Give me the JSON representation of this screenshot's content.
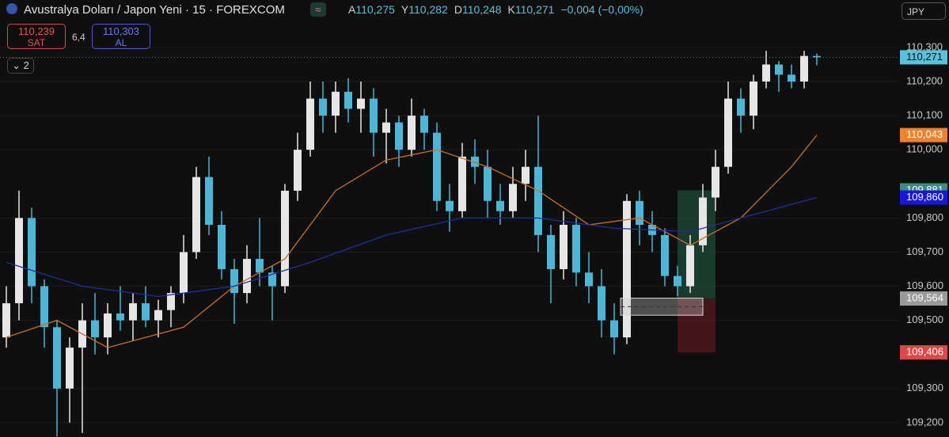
{
  "header": {
    "symbol": "Avustralya Doları / Japon Yeni · 15 · FOREXCOM",
    "approx": "≈",
    "ohlc_labels": [
      {
        "key": "A",
        "value": "110,275"
      },
      {
        "key": "Y",
        "value": "110,282"
      },
      {
        "key": "D",
        "value": "110,248"
      },
      {
        "key": "K",
        "value": "110,271"
      }
    ],
    "change": "−0,004 (−0,00%)",
    "sell_price": "110,239",
    "sell": "SAT",
    "spread": "6,4",
    "buy_price": "110,303",
    "buy": "AL",
    "indicators": "2",
    "currency": "JPY"
  },
  "chart_data": {
    "type": "candlestick",
    "up_color": "#e6e6e6",
    "down_color": "#4db6d6",
    "grid": true,
    "ylim": [
      109.158,
      110.439
    ],
    "yticks": [
      {
        "value": 110.3,
        "label": "110,300"
      },
      {
        "value": 110.2,
        "label": "110,200"
      },
      {
        "value": 110.1,
        "label": "110,100"
      },
      {
        "value": 110.0,
        "label": "110,000"
      },
      {
        "value": 109.8,
        "label": "109,800"
      },
      {
        "value": 109.7,
        "label": "109,700"
      },
      {
        "value": 109.6,
        "label": "109,600"
      },
      {
        "value": 109.5,
        "label": "109,500"
      },
      {
        "value": 109.3,
        "label": "109,300"
      },
      {
        "value": 109.2,
        "label": "109,200"
      }
    ],
    "ohlc": [
      [
        109.45,
        109.6,
        109.42,
        109.55
      ],
      [
        109.55,
        109.88,
        109.5,
        109.8
      ],
      [
        109.8,
        109.83,
        109.55,
        109.6
      ],
      [
        109.6,
        109.62,
        109.42,
        109.48
      ],
      [
        109.48,
        109.5,
        109.16,
        109.3
      ],
      [
        109.3,
        109.45,
        109.2,
        109.42
      ],
      [
        109.42,
        109.55,
        109.17,
        109.5
      ],
      [
        109.5,
        109.58,
        109.4,
        109.45
      ],
      [
        109.45,
        109.55,
        109.4,
        109.52
      ],
      [
        109.52,
        109.6,
        109.47,
        109.5
      ],
      [
        109.5,
        109.58,
        109.44,
        109.55
      ],
      [
        109.55,
        109.6,
        109.48,
        109.5
      ],
      [
        109.5,
        109.56,
        109.45,
        109.53
      ],
      [
        109.53,
        109.6,
        109.48,
        109.58
      ],
      [
        109.58,
        109.75,
        109.55,
        109.7
      ],
      [
        109.7,
        109.95,
        109.68,
        109.92
      ],
      [
        109.92,
        109.98,
        109.75,
        109.78
      ],
      [
        109.78,
        109.82,
        109.62,
        109.65
      ],
      [
        109.65,
        109.68,
        109.49,
        109.58
      ],
      [
        109.58,
        109.72,
        109.55,
        109.68
      ],
      [
        109.68,
        109.8,
        109.6,
        109.64
      ],
      [
        109.64,
        109.66,
        109.5,
        109.6
      ],
      [
        109.6,
        109.9,
        109.58,
        109.88
      ],
      [
        109.88,
        110.05,
        109.85,
        110.0
      ],
      [
        110.0,
        110.2,
        109.98,
        110.15
      ],
      [
        110.15,
        110.2,
        110.05,
        110.1
      ],
      [
        110.1,
        110.2,
        110.05,
        110.17
      ],
      [
        110.17,
        110.21,
        110.08,
        110.12
      ],
      [
        110.12,
        110.2,
        110.05,
        110.15
      ],
      [
        110.15,
        110.18,
        109.98,
        110.05
      ],
      [
        110.05,
        110.12,
        109.96,
        110.08
      ],
      [
        110.08,
        110.1,
        109.95,
        110.0
      ],
      [
        110.0,
        110.15,
        109.98,
        110.1
      ],
      [
        110.1,
        110.12,
        110.0,
        110.05
      ],
      [
        110.05,
        110.08,
        109.82,
        109.85
      ],
      [
        109.85,
        109.9,
        109.76,
        109.82
      ],
      [
        109.82,
        110.02,
        109.8,
        109.98
      ],
      [
        109.98,
        110.03,
        109.9,
        109.95
      ],
      [
        109.95,
        110.0,
        109.8,
        109.85
      ],
      [
        109.85,
        109.9,
        109.78,
        109.82
      ],
      [
        109.82,
        109.95,
        109.8,
        109.9
      ],
      [
        109.9,
        110.0,
        109.85,
        109.95
      ],
      [
        109.95,
        110.1,
        109.7,
        109.75
      ],
      [
        109.75,
        109.78,
        109.55,
        109.65
      ],
      [
        109.65,
        109.82,
        109.62,
        109.78
      ],
      [
        109.78,
        109.8,
        109.6,
        109.64
      ],
      [
        109.64,
        109.7,
        109.55,
        109.6
      ],
      [
        109.6,
        109.65,
        109.45,
        109.5
      ],
      [
        109.5,
        109.55,
        109.4,
        109.45
      ],
      [
        109.45,
        109.87,
        109.43,
        109.85
      ],
      [
        109.85,
        109.88,
        109.72,
        109.78
      ],
      [
        109.78,
        109.82,
        109.7,
        109.75
      ],
      [
        109.75,
        109.77,
        109.6,
        109.63
      ],
      [
        109.63,
        109.66,
        109.57,
        109.6
      ],
      [
        109.6,
        109.75,
        109.58,
        109.72
      ],
      [
        109.72,
        109.9,
        109.7,
        109.86
      ],
      [
        109.86,
        110.0,
        109.82,
        109.95
      ],
      [
        109.95,
        110.2,
        109.93,
        110.15
      ],
      [
        110.15,
        110.18,
        110.05,
        110.1
      ],
      [
        110.1,
        110.22,
        110.06,
        110.2
      ],
      [
        110.2,
        110.29,
        110.18,
        110.25
      ],
      [
        110.25,
        110.26,
        110.17,
        110.22
      ],
      [
        110.22,
        110.25,
        110.18,
        110.2
      ],
      [
        110.2,
        110.29,
        110.18,
        110.275
      ],
      [
        110.275,
        110.282,
        110.248,
        110.271
      ]
    ],
    "series": [
      {
        "color": "#c8702a",
        "x": [
          0,
          4,
          8,
          14,
          18,
          22,
          26,
          30,
          34,
          38,
          42,
          46,
          50,
          54,
          58,
          62,
          64
        ],
        "values": [
          109.45,
          109.5,
          109.42,
          109.48,
          109.6,
          109.68,
          109.88,
          109.97,
          110.0,
          109.95,
          109.88,
          109.78,
          109.8,
          109.72,
          109.8,
          109.95,
          110.043
        ]
      },
      {
        "color": "#1f2f9a",
        "x": [
          0,
          6,
          12,
          18,
          24,
          30,
          36,
          42,
          48,
          54,
          60,
          64
        ],
        "values": [
          109.67,
          109.6,
          109.57,
          109.6,
          109.67,
          109.75,
          109.8,
          109.8,
          109.77,
          109.76,
          109.82,
          109.86
        ]
      }
    ],
    "position": {
      "x": [
        53,
        56
      ],
      "entry": 109.564,
      "target": 109.881,
      "stop": 109.406
    },
    "zone": {
      "x": [
        48.5,
        55
      ],
      "low": 109.515,
      "high": 109.565
    },
    "price_labels": [
      {
        "value": 110.271,
        "label": "110,271",
        "color": "#5bc0de"
      },
      {
        "value": 110.043,
        "label": "110,043",
        "color": "#f0822e"
      },
      {
        "value": 109.881,
        "label": "109,881",
        "color": "#3b8f7a"
      },
      {
        "value": 109.86,
        "label": "109,860",
        "color": "#1818d8"
      },
      {
        "value": 109.564,
        "label": "109,564",
        "color": "#9a9a9a"
      },
      {
        "value": 109.406,
        "label": "109,406",
        "color": "#e04848"
      }
    ]
  }
}
